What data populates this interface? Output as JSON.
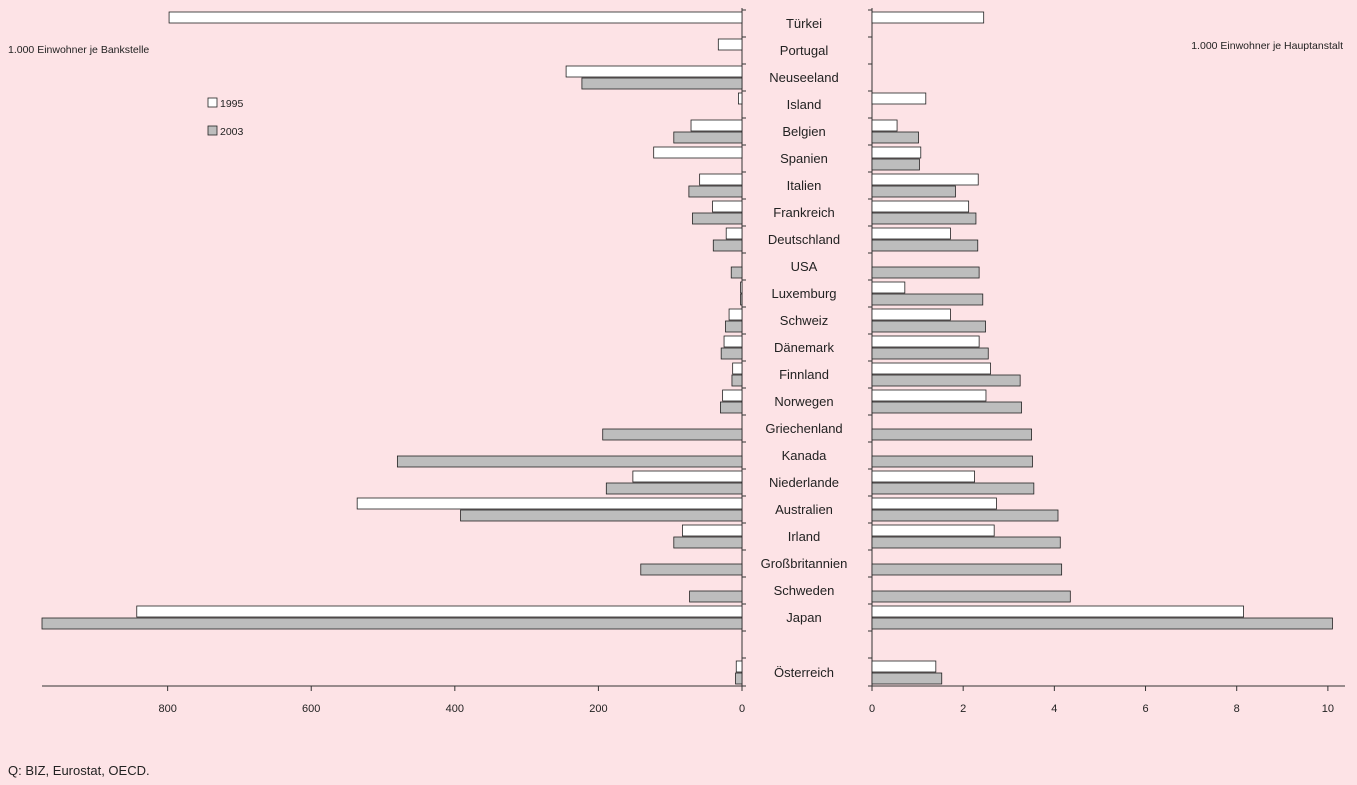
{
  "source_note": "Q: BIZ, Eurostat, OECD.",
  "chart_data": [
    {
      "type": "bar",
      "orientation": "horizontal",
      "direction": "right-to-left",
      "title": "",
      "axis_note": "1.000 Einwohner je Bankstelle",
      "xlim": [
        0,
        975
      ],
      "xticks": [
        0,
        200,
        400,
        600,
        800
      ],
      "categories": [
        "Türkei",
        "Portugal",
        "Neuseeland",
        "Island",
        "Belgien",
        "Spanien",
        "Italien",
        "Frankreich",
        "Deutschland",
        "USA",
        "Luxemburg",
        "Schweiz",
        "Dänemark",
        "Finnland",
        "Norwegen",
        "Griechenland",
        "Kanada",
        "Niederlande",
        "Australien",
        "Irland",
        "Großbritannien",
        "Schweden",
        "Japan",
        "Österreich"
      ],
      "series": [
        {
          "name": "1995",
          "color": "#ffffff",
          "values": [
            798,
            33,
            245,
            5,
            71,
            123,
            59,
            41,
            22,
            null,
            2,
            18,
            25,
            13,
            27,
            null,
            null,
            152,
            536,
            83,
            null,
            null,
            843,
            8
          ]
        },
        {
          "name": "2003",
          "color": "#bdbdbd",
          "values": [
            null,
            null,
            223,
            null,
            95,
            null,
            74,
            69,
            40,
            15,
            2,
            23,
            29,
            14,
            30,
            194,
            480,
            189,
            392,
            95,
            141,
            73,
            975,
            9
          ]
        }
      ],
      "legend_position": "top-left"
    },
    {
      "type": "bar",
      "orientation": "horizontal",
      "title": "",
      "axis_note": "1.000 Einwohner je Hauptanstalt",
      "xlim": [
        0,
        10.2
      ],
      "xticks": [
        0,
        2,
        4,
        6,
        8,
        10
      ],
      "categories": [
        "Türkei",
        "Portugal",
        "Neuseeland",
        "Island",
        "Belgien",
        "Spanien",
        "Italien",
        "Frankreich",
        "Deutschland",
        "USA",
        "Luxemburg",
        "Schweiz",
        "Dänemark",
        "Finnland",
        "Norwegen",
        "Griechenland",
        "Kanada",
        "Niederlande",
        "Australien",
        "Irland",
        "Großbritannien",
        "Schweden",
        "Japan",
        "Österreich"
      ],
      "series": [
        {
          "name": "1995",
          "color": "#ffffff",
          "values": [
            2.45,
            null,
            null,
            1.18,
            0.55,
            1.07,
            2.33,
            2.12,
            1.72,
            null,
            0.72,
            1.72,
            2.35,
            2.6,
            2.5,
            null,
            null,
            2.25,
            2.73,
            2.68,
            null,
            null,
            8.15,
            1.4
          ]
        },
        {
          "name": "2003",
          "color": "#bdbdbd",
          "values": [
            null,
            null,
            null,
            null,
            1.02,
            1.04,
            1.83,
            2.28,
            2.32,
            2.35,
            2.43,
            2.49,
            2.55,
            3.25,
            3.28,
            3.5,
            3.52,
            3.55,
            4.08,
            4.13,
            4.16,
            4.35,
            10.1,
            1.53
          ]
        }
      ]
    }
  ]
}
